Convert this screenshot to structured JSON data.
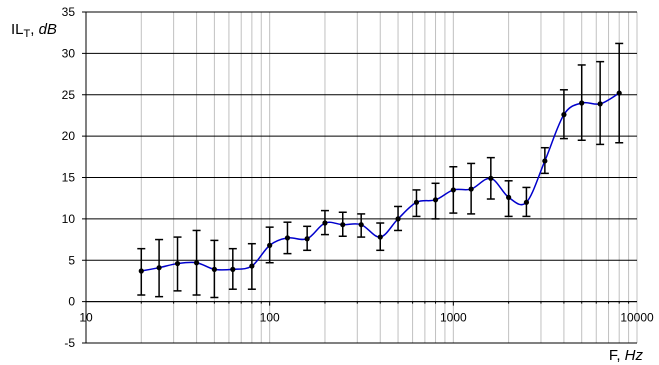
{
  "chart_data": {
    "type": "line",
    "x_scale": "log",
    "grid": true,
    "colors": {
      "series": "#0000cc",
      "points": "#000000",
      "error_bars": "#000000",
      "grid_major": "#000000",
      "grid_minor": "#c0c0c0"
    },
    "ylabel": {
      "main": "IL",
      "sub": "T",
      "sep": ", ",
      "unit": "dB"
    },
    "xlabel": {
      "main": "F",
      "sep": ", ",
      "unit": "Hz"
    },
    "xlim": [
      10,
      10000
    ],
    "ylim": [
      -5,
      35
    ],
    "y_ticks": [
      -5,
      0,
      5,
      10,
      15,
      20,
      25,
      30,
      35
    ],
    "x_ticks": [
      10,
      100,
      1000,
      10000
    ],
    "series": [
      {
        "points": [
          {
            "x": 20,
            "y": 3.7,
            "lo": 0.8,
            "hi": 6.4
          },
          {
            "x": 25,
            "y": 4.1,
            "lo": 0.6,
            "hi": 7.5
          },
          {
            "x": 31.5,
            "y": 4.6,
            "lo": 1.3,
            "hi": 7.8
          },
          {
            "x": 40,
            "y": 4.7,
            "lo": 0.8,
            "hi": 8.6
          },
          {
            "x": 50,
            "y": 3.9,
            "lo": 0.5,
            "hi": 7.4
          },
          {
            "x": 63,
            "y": 3.9,
            "lo": 1.5,
            "hi": 6.4
          },
          {
            "x": 80,
            "y": 4.3,
            "lo": 1.5,
            "hi": 7.0
          },
          {
            "x": 100,
            "y": 6.8,
            "lo": 4.7,
            "hi": 9.0
          },
          {
            "x": 125,
            "y": 7.7,
            "lo": 5.8,
            "hi": 9.6
          },
          {
            "x": 160,
            "y": 7.6,
            "lo": 6.2,
            "hi": 9.1
          },
          {
            "x": 200,
            "y": 9.5,
            "lo": 8.1,
            "hi": 11.0
          },
          {
            "x": 250,
            "y": 9.3,
            "lo": 7.9,
            "hi": 10.8
          },
          {
            "x": 315,
            "y": 9.3,
            "lo": 7.8,
            "hi": 10.6
          },
          {
            "x": 400,
            "y": 7.8,
            "lo": 6.2,
            "hi": 9.5
          },
          {
            "x": 500,
            "y": 10.0,
            "lo": 8.6,
            "hi": 11.5
          },
          {
            "x": 630,
            "y": 12.0,
            "lo": 10.3,
            "hi": 13.5
          },
          {
            "x": 800,
            "y": 12.3,
            "lo": 10.0,
            "hi": 14.3
          },
          {
            "x": 1000,
            "y": 13.5,
            "lo": 10.7,
            "hi": 16.3
          },
          {
            "x": 1250,
            "y": 13.6,
            "lo": 10.6,
            "hi": 16.7
          },
          {
            "x": 1600,
            "y": 14.9,
            "lo": 12.4,
            "hi": 17.4
          },
          {
            "x": 2000,
            "y": 12.6,
            "lo": 10.3,
            "hi": 14.6
          },
          {
            "x": 2500,
            "y": 12.0,
            "lo": 10.3,
            "hi": 13.8
          },
          {
            "x": 3150,
            "y": 17.0,
            "lo": 15.5,
            "hi": 18.6
          },
          {
            "x": 4000,
            "y": 22.6,
            "lo": 19.7,
            "hi": 25.6
          },
          {
            "x": 5000,
            "y": 24.0,
            "lo": 19.5,
            "hi": 28.6
          },
          {
            "x": 6300,
            "y": 23.9,
            "lo": 19.0,
            "hi": 29.0
          },
          {
            "x": 8000,
            "y": 25.2,
            "lo": 19.2,
            "hi": 31.2
          }
        ]
      }
    ]
  }
}
